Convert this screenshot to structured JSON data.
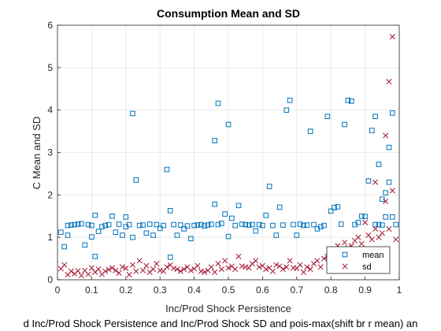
{
  "chart_data": {
    "type": "scatter",
    "title": "Consumption Mean and SD",
    "xlabel": "Inc/Prod Shock Persistence",
    "ylabel": "C Mean and SD",
    "caption": "d Inc/Prod Shock Persistence and Inc/Prod Shock SD and pois-max(shift br r mean) an",
    "xlim": [
      0,
      1
    ],
    "ylim": [
      0,
      6
    ],
    "x_ticks": [
      "0",
      "0.1",
      "0.2",
      "0.3",
      "0.4",
      "0.5",
      "0.6",
      "0.7",
      "0.8",
      "0.9",
      "1"
    ],
    "y_ticks": [
      "0",
      "1",
      "2",
      "3",
      "4",
      "5",
      "6"
    ],
    "grid": true,
    "legend_position": "bottom-right",
    "series": [
      {
        "name": "mean",
        "marker": "square",
        "color": "#0072BD",
        "points": [
          [
            0.01,
            1.12
          ],
          [
            0.02,
            0.78
          ],
          [
            0.03,
            1.05
          ],
          [
            0.03,
            1.28
          ],
          [
            0.04,
            1.29
          ],
          [
            0.05,
            1.3
          ],
          [
            0.06,
            1.31
          ],
          [
            0.07,
            1.32
          ],
          [
            0.08,
            0.82
          ],
          [
            0.09,
            1.3
          ],
          [
            0.1,
            1.28
          ],
          [
            0.1,
            1.01
          ],
          [
            0.11,
            1.52
          ],
          [
            0.11,
            0.55
          ],
          [
            0.12,
            1.14
          ],
          [
            0.13,
            1.25
          ],
          [
            0.14,
            1.28
          ],
          [
            0.15,
            1.3
          ],
          [
            0.16,
            1.5
          ],
          [
            0.17,
            1.12
          ],
          [
            0.18,
            1.31
          ],
          [
            0.19,
            1.05
          ],
          [
            0.2,
            1.25
          ],
          [
            0.2,
            1.48
          ],
          [
            0.21,
            1.3
          ],
          [
            0.22,
            3.92
          ],
          [
            0.22,
            1.0
          ],
          [
            0.23,
            2.35
          ],
          [
            0.24,
            1.28
          ],
          [
            0.25,
            1.29
          ],
          [
            0.26,
            1.1
          ],
          [
            0.27,
            1.31
          ],
          [
            0.28,
            1.05
          ],
          [
            0.29,
            1.3
          ],
          [
            0.3,
            1.21
          ],
          [
            0.31,
            1.28
          ],
          [
            0.32,
            2.6
          ],
          [
            0.33,
            1.63
          ],
          [
            0.33,
            0.53
          ],
          [
            0.34,
            1.3
          ],
          [
            0.35,
            1.05
          ],
          [
            0.36,
            1.29
          ],
          [
            0.37,
            1.2
          ],
          [
            0.38,
            1.27
          ],
          [
            0.39,
            0.97
          ],
          [
            0.4,
            1.28
          ],
          [
            0.41,
            1.29
          ],
          [
            0.42,
            1.3
          ],
          [
            0.43,
            1.27
          ],
          [
            0.44,
            1.29
          ],
          [
            0.45,
            1.31
          ],
          [
            0.46,
            1.78
          ],
          [
            0.46,
            3.28
          ],
          [
            0.47,
            4.16
          ],
          [
            0.47,
            1.3
          ],
          [
            0.48,
            1.33
          ],
          [
            0.49,
            1.55
          ],
          [
            0.5,
            3.66
          ],
          [
            0.5,
            1.02
          ],
          [
            0.51,
            1.45
          ],
          [
            0.52,
            1.28
          ],
          [
            0.53,
            1.75
          ],
          [
            0.54,
            1.31
          ],
          [
            0.55,
            1.3
          ],
          [
            0.56,
            1.29
          ],
          [
            0.57,
            1.3
          ],
          [
            0.58,
            1.15
          ],
          [
            0.59,
            1.3
          ],
          [
            0.6,
            1.28
          ],
          [
            0.61,
            1.52
          ],
          [
            0.62,
            2.2
          ],
          [
            0.63,
            1.28
          ],
          [
            0.64,
            1.05
          ],
          [
            0.65,
            1.71
          ],
          [
            0.66,
            1.29
          ],
          [
            0.67,
            4.0
          ],
          [
            0.68,
            4.23
          ],
          [
            0.69,
            1.3
          ],
          [
            0.7,
            1.05
          ],
          [
            0.71,
            1.31
          ],
          [
            0.72,
            1.28
          ],
          [
            0.73,
            1.29
          ],
          [
            0.74,
            3.5
          ],
          [
            0.75,
            1.3
          ],
          [
            0.76,
            1.2
          ],
          [
            0.77,
            1.25
          ],
          [
            0.78,
            1.28
          ],
          [
            0.79,
            3.85
          ],
          [
            0.8,
            1.62
          ],
          [
            0.81,
            1.7
          ],
          [
            0.82,
            1.72
          ],
          [
            0.83,
            1.31
          ],
          [
            0.84,
            3.66
          ],
          [
            0.85,
            4.23
          ],
          [
            0.86,
            4.21
          ],
          [
            0.87,
            1.3
          ],
          [
            0.88,
            1.35
          ],
          [
            0.89,
            1.5
          ],
          [
            0.9,
            1.49
          ],
          [
            0.91,
            2.33
          ],
          [
            0.92,
            3.52
          ],
          [
            0.93,
            1.3
          ],
          [
            0.93,
            3.85
          ],
          [
            0.94,
            2.72
          ],
          [
            0.94,
            1.3
          ],
          [
            0.95,
            1.9
          ],
          [
            0.95,
            1.29
          ],
          [
            0.96,
            2.05
          ],
          [
            0.96,
            1.48
          ],
          [
            0.97,
            3.12
          ],
          [
            0.97,
            2.3
          ],
          [
            0.98,
            3.93
          ],
          [
            0.98,
            1.48
          ],
          [
            0.99,
            1.3
          ]
        ]
      },
      {
        "name": "sd",
        "marker": "x",
        "color": "#A2142F",
        "points": [
          [
            0.01,
            0.26
          ],
          [
            0.02,
            0.35
          ],
          [
            0.03,
            0.12
          ],
          [
            0.04,
            0.2
          ],
          [
            0.05,
            0.14
          ],
          [
            0.06,
            0.21
          ],
          [
            0.07,
            0.1
          ],
          [
            0.08,
            0.22
          ],
          [
            0.09,
            0.13
          ],
          [
            0.1,
            0.28
          ],
          [
            0.11,
            0.18
          ],
          [
            0.12,
            0.25
          ],
          [
            0.13,
            0.13
          ],
          [
            0.14,
            0.2
          ],
          [
            0.15,
            0.24
          ],
          [
            0.16,
            0.28
          ],
          [
            0.17,
            0.22
          ],
          [
            0.18,
            0.16
          ],
          [
            0.19,
            0.3
          ],
          [
            0.2,
            0.27
          ],
          [
            0.21,
            0.12
          ],
          [
            0.22,
            0.35
          ],
          [
            0.23,
            0.2
          ],
          [
            0.24,
            0.45
          ],
          [
            0.25,
            0.22
          ],
          [
            0.26,
            0.33
          ],
          [
            0.27,
            0.18
          ],
          [
            0.28,
            0.25
          ],
          [
            0.29,
            0.38
          ],
          [
            0.3,
            0.22
          ],
          [
            0.31,
            0.2
          ],
          [
            0.32,
            0.3
          ],
          [
            0.33,
            0.35
          ],
          [
            0.34,
            0.27
          ],
          [
            0.35,
            0.25
          ],
          [
            0.36,
            0.2
          ],
          [
            0.37,
            0.25
          ],
          [
            0.38,
            0.3
          ],
          [
            0.39,
            0.22
          ],
          [
            0.4,
            0.26
          ],
          [
            0.41,
            0.33
          ],
          [
            0.42,
            0.2
          ],
          [
            0.43,
            0.18
          ],
          [
            0.44,
            0.22
          ],
          [
            0.45,
            0.3
          ],
          [
            0.46,
            0.18
          ],
          [
            0.47,
            0.38
          ],
          [
            0.48,
            0.25
          ],
          [
            0.49,
            0.45
          ],
          [
            0.5,
            0.28
          ],
          [
            0.51,
            0.32
          ],
          [
            0.52,
            0.25
          ],
          [
            0.53,
            0.55
          ],
          [
            0.54,
            0.32
          ],
          [
            0.55,
            0.3
          ],
          [
            0.56,
            0.28
          ],
          [
            0.57,
            0.38
          ],
          [
            0.58,
            0.45
          ],
          [
            0.59,
            0.3
          ],
          [
            0.6,
            0.33
          ],
          [
            0.61,
            0.25
          ],
          [
            0.62,
            0.28
          ],
          [
            0.63,
            0.2
          ],
          [
            0.64,
            0.35
          ],
          [
            0.65,
            0.32
          ],
          [
            0.66,
            0.25
          ],
          [
            0.67,
            0.3
          ],
          [
            0.68,
            0.45
          ],
          [
            0.69,
            0.28
          ],
          [
            0.7,
            0.27
          ],
          [
            0.71,
            0.35
          ],
          [
            0.72,
            0.18
          ],
          [
            0.73,
            0.3
          ],
          [
            0.74,
            0.25
          ],
          [
            0.75,
            0.38
          ],
          [
            0.76,
            0.45
          ],
          [
            0.77,
            0.3
          ],
          [
            0.78,
            0.5
          ],
          [
            0.79,
            0.55
          ],
          [
            0.8,
            0.7
          ],
          [
            0.81,
            0.6
          ],
          [
            0.82,
            0.8
          ],
          [
            0.83,
            0.65
          ],
          [
            0.84,
            0.88
          ],
          [
            0.85,
            0.75
          ],
          [
            0.86,
            0.8
          ],
          [
            0.87,
            0.92
          ],
          [
            0.88,
            1.0
          ],
          [
            0.89,
            0.85
          ],
          [
            0.9,
            1.35
          ],
          [
            0.91,
            1.05
          ],
          [
            0.92,
            0.95
          ],
          [
            0.93,
            2.3
          ],
          [
            0.93,
            1.2
          ],
          [
            0.94,
            1.0
          ],
          [
            0.95,
            1.1
          ],
          [
            0.96,
            3.4
          ],
          [
            0.96,
            1.85
          ],
          [
            0.97,
            4.67
          ],
          [
            0.97,
            1.2
          ],
          [
            0.98,
            5.73
          ],
          [
            0.98,
            2.1
          ],
          [
            0.99,
            0.95
          ]
        ]
      }
    ]
  }
}
